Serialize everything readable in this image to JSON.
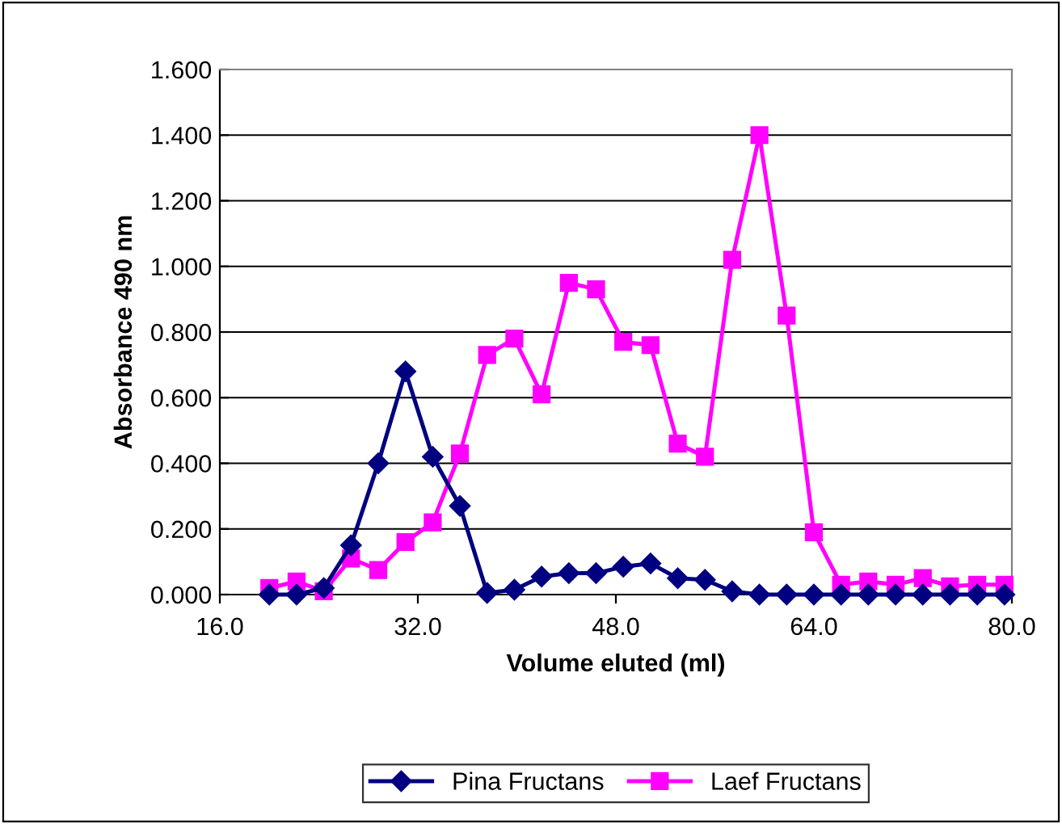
{
  "chart_data": {
    "type": "line",
    "xlabel": "Volume eluted (ml)",
    "ylabel": "Absorbance 490 nm",
    "x": [
      20.0,
      22.2,
      24.4,
      26.6,
      28.8,
      31.0,
      33.2,
      35.4,
      37.6,
      39.8,
      42.0,
      44.2,
      46.4,
      48.6,
      50.8,
      53.0,
      55.2,
      57.4,
      59.6,
      61.8,
      64.0,
      66.2,
      68.4,
      70.6,
      72.8,
      75.0,
      77.2,
      79.4
    ],
    "series": [
      {
        "name": "Pina Fructans",
        "color": "#000080",
        "marker": "diamond",
        "values": [
          0.0,
          0.0,
          0.02,
          0.15,
          0.4,
          0.68,
          0.42,
          0.27,
          0.005,
          0.015,
          0.055,
          0.065,
          0.065,
          0.085,
          0.095,
          0.05,
          0.045,
          0.01,
          0.0,
          0.0,
          0.0,
          0.0,
          0.0,
          0.0,
          0.0,
          0.0,
          0.0,
          0.0
        ]
      },
      {
        "name": "Laef Fructans",
        "color": "#ff00ff",
        "marker": "square",
        "values": [
          0.02,
          0.04,
          0.01,
          0.11,
          0.075,
          0.16,
          0.22,
          0.43,
          0.73,
          0.78,
          0.61,
          0.95,
          0.93,
          0.77,
          0.76,
          0.46,
          0.42,
          1.02,
          1.4,
          0.85,
          0.19,
          0.03,
          0.04,
          0.03,
          0.05,
          0.025,
          0.03,
          0.03
        ]
      }
    ],
    "xlim": [
      16,
      80
    ],
    "xticks": [
      {
        "value": 16,
        "label": "16.0"
      },
      {
        "value": 32,
        "label": "32.0"
      },
      {
        "value": 48,
        "label": "48.0"
      },
      {
        "value": 64,
        "label": "64.0"
      },
      {
        "value": 80,
        "label": "80.0"
      }
    ],
    "ylim": [
      0,
      1.6
    ],
    "yticks": [
      {
        "value": 0,
        "label": "0.000"
      },
      {
        "value": 0.2,
        "label": "0.200"
      },
      {
        "value": 0.4,
        "label": "0.400"
      },
      {
        "value": 0.6,
        "label": "0.600"
      },
      {
        "value": 0.8,
        "label": "0.800"
      },
      {
        "value": 1.0,
        "label": "1.000"
      },
      {
        "value": 1.2,
        "label": "1.200"
      },
      {
        "value": 1.4,
        "label": "1.400"
      },
      {
        "value": 1.6,
        "label": "1.600"
      }
    ],
    "grid": "y",
    "legend": "bottom",
    "line_style": "solid"
  }
}
